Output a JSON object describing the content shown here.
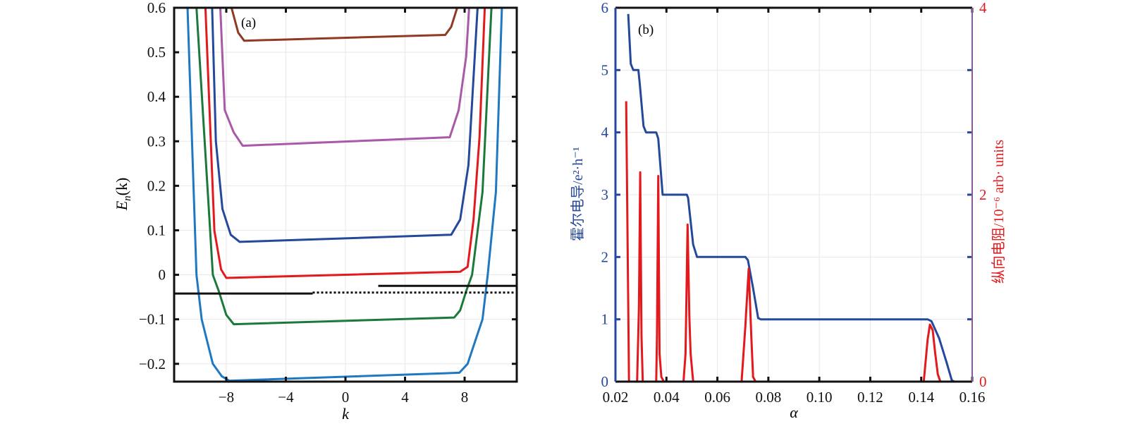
{
  "chart_data": [
    {
      "type": "line",
      "panel_label": "(a)",
      "xlabel": "k",
      "ylabel": {
        "main": "E",
        "sub": "n",
        "rest": "(k)"
      },
      "xlim": [
        -11.5,
        11.5
      ],
      "ylim": [
        -0.24,
        0.6
      ],
      "xticks": [
        -8,
        -4,
        0,
        4,
        8
      ],
      "xtick_labels": [
        "−8",
        "−4",
        "0",
        "4",
        "8"
      ],
      "yticks": [
        -0.2,
        -0.1,
        0,
        0.1,
        0.2,
        0.3,
        0.4,
        0.5,
        0.6
      ],
      "ytick_labels": [
        "−0.2",
        "−0.1",
        "0",
        "0.1",
        "0.2",
        "0.3",
        "0.4",
        "0.5",
        "0.6"
      ],
      "grid": true,
      "series": [
        {
          "color": "#1f78c1",
          "points": [
            [
              -10.6,
              0.6
            ],
            [
              -10.0,
              0
            ],
            [
              -9.65,
              -0.1
            ],
            [
              -8.9,
              -0.2
            ],
            [
              -8.3,
              -0.228
            ],
            [
              -7.8,
              -0.238
            ],
            [
              7.65,
              -0.22
            ],
            [
              8.2,
              -0.2
            ],
            [
              8.8,
              -0.14
            ],
            [
              9.2,
              -0.1
            ],
            [
              9.55,
              0
            ],
            [
              10.1,
              0.186
            ],
            [
              10.5,
              0.6
            ]
          ]
        },
        {
          "color": "#1b7a3a",
          "points": [
            [
              -10.0,
              0.6
            ],
            [
              -8.9,
              0
            ],
            [
              -8.5,
              -0.037
            ],
            [
              -8.0,
              -0.09
            ],
            [
              -7.5,
              -0.111
            ],
            [
              7.3,
              -0.096
            ],
            [
              7.7,
              -0.08
            ],
            [
              8.1,
              -0.037
            ],
            [
              8.5,
              0
            ],
            [
              9.2,
              0.186
            ],
            [
              9.8,
              0.6
            ]
          ]
        },
        {
          "color": "#e3191d",
          "points": [
            [
              -9.4,
              0.6
            ],
            [
              -8.8,
              0.099
            ],
            [
              -8.35,
              0.012
            ],
            [
              -8.0,
              -0.007
            ],
            [
              7.7,
              0.007
            ],
            [
              8.2,
              0.018
            ],
            [
              8.6,
              0.124
            ],
            [
              9.0,
              0.31
            ],
            [
              9.35,
              0.6
            ]
          ]
        },
        {
          "color": "#24489b",
          "points": [
            [
              -8.95,
              0.6
            ],
            [
              -8.7,
              0.3
            ],
            [
              -8.26,
              0.148
            ],
            [
              -7.7,
              0.09
            ],
            [
              -7.1,
              0.074
            ],
            [
              7.1,
              0.09
            ],
            [
              7.7,
              0.124
            ],
            [
              8.26,
              0.247
            ],
            [
              8.87,
              0.6
            ]
          ]
        },
        {
          "color": "#a959a8",
          "points": [
            [
              -8.4,
              0.6
            ],
            [
              -8.1,
              0.37
            ],
            [
              -7.5,
              0.32
            ],
            [
              -6.9,
              0.29
            ],
            [
              7.0,
              0.309
            ],
            [
              7.6,
              0.37
            ],
            [
              8.1,
              0.49
            ],
            [
              8.3,
              0.6
            ]
          ]
        },
        {
          "color": "#8f3a24",
          "points": [
            [
              -7.65,
              0.6
            ],
            [
              -7.2,
              0.544
            ],
            [
              -6.8,
              0.526
            ],
            [
              6.7,
              0.539
            ],
            [
              7.1,
              0.557
            ],
            [
              7.5,
              0.6
            ]
          ]
        }
      ],
      "reference_lines": [
        {
          "color": "#111111",
          "style": "solid",
          "points": [
            [
              -11.5,
              -0.042
            ],
            [
              -2.2,
              -0.042
            ]
          ]
        },
        {
          "color": "#111111",
          "style": "dotted",
          "points": [
            [
              -2.2,
              -0.04
            ],
            [
              11.5,
              -0.04
            ]
          ]
        },
        {
          "color": "#111111",
          "style": "solid",
          "points": [
            [
              2.2,
              -0.025
            ],
            [
              11.5,
              -0.025
            ]
          ]
        }
      ]
    },
    {
      "type": "line",
      "panel_label": "(b)",
      "xlabel": "α",
      "ylabel_left": "霍尔电导/e²·h⁻¹",
      "ylabel_right": "纵向电阻/10⁻⁶ arb· units",
      "xlim": [
        0.02,
        0.16
      ],
      "ylim_left": [
        0,
        6
      ],
      "ylim_right": [
        0,
        4
      ],
      "xticks": [
        0.02,
        0.04,
        0.06,
        0.08,
        0.1,
        0.12,
        0.14,
        0.16
      ],
      "xtick_labels": [
        "0.02",
        "0.04",
        "0.06",
        "0.08",
        "0.10",
        "0.12",
        "0.14",
        "0.16"
      ],
      "yticks_left": [
        0,
        1,
        2,
        3,
        4,
        5,
        6
      ],
      "ytick_labels_left": [
        "0",
        "1",
        "2",
        "3",
        "4",
        "5",
        "6"
      ],
      "yticks_right": [
        0,
        2,
        4
      ],
      "ytick_labels_right": [
        "0",
        "2",
        "4"
      ],
      "grid": true,
      "left_color": "#24489b",
      "right_color": "#e3191d",
      "right_spine_color": "#8a5a9a",
      "series": [
        {
          "axis": "left",
          "color": "#24489b",
          "points": [
            [
              0.025,
              5.9
            ],
            [
              0.026,
              5.1
            ],
            [
              0.027,
              5.0
            ],
            [
              0.029,
              5.0
            ],
            [
              0.0295,
              4.8
            ],
            [
              0.031,
              4.1
            ],
            [
              0.032,
              4.0
            ],
            [
              0.036,
              4.0
            ],
            [
              0.0368,
              3.9
            ],
            [
              0.0385,
              3.0
            ],
            [
              0.048,
              3.0
            ],
            [
              0.0485,
              2.95
            ],
            [
              0.0505,
              2.2
            ],
            [
              0.052,
              2.0
            ],
            [
              0.071,
              2.0
            ],
            [
              0.072,
              1.95
            ],
            [
              0.074,
              1.5
            ],
            [
              0.076,
              1.02
            ],
            [
              0.077,
              1.0
            ],
            [
              0.1425,
              1.0
            ],
            [
              0.144,
              0.97
            ],
            [
              0.147,
              0.7
            ],
            [
              0.15,
              0.3
            ],
            [
              0.152,
              0.02
            ],
            [
              0.153,
              0
            ],
            [
              0.16,
              0
            ]
          ]
        },
        {
          "axis": "right",
          "color": "#e3191d",
          "points": [
            [
              0.0242,
              3.0
            ],
            [
              0.0253,
              0
            ],
            [
              0.0285,
              0
            ],
            [
              0.0292,
              0.8
            ],
            [
              0.0297,
              2.24
            ],
            [
              0.0302,
              0.5
            ],
            [
              0.0307,
              0
            ],
            [
              0.036,
              0
            ],
            [
              0.0363,
              0.5
            ],
            [
              0.0368,
              2.2
            ],
            [
              0.0373,
              0.3
            ],
            [
              0.038,
              0.05
            ],
            [
              0.039,
              0
            ],
            [
              0.0467,
              0
            ],
            [
              0.0475,
              0.3
            ],
            [
              0.0483,
              1.68
            ],
            [
              0.049,
              0.7
            ],
            [
              0.0495,
              0.3
            ],
            [
              0.0505,
              0
            ],
            [
              0.0695,
              0
            ],
            [
              0.071,
              0.6
            ],
            [
              0.0723,
              1.21
            ],
            [
              0.0733,
              0.5
            ],
            [
              0.074,
              0.05
            ],
            [
              0.075,
              0
            ],
            [
              0.141,
              0
            ],
            [
              0.1425,
              0.45
            ],
            [
              0.1434,
              0.61
            ],
            [
              0.1445,
              0.55
            ],
            [
              0.1455,
              0.3
            ],
            [
              0.1465,
              0.08
            ],
            [
              0.1475,
              0
            ],
            [
              0.16,
              0
            ]
          ]
        }
      ]
    }
  ]
}
